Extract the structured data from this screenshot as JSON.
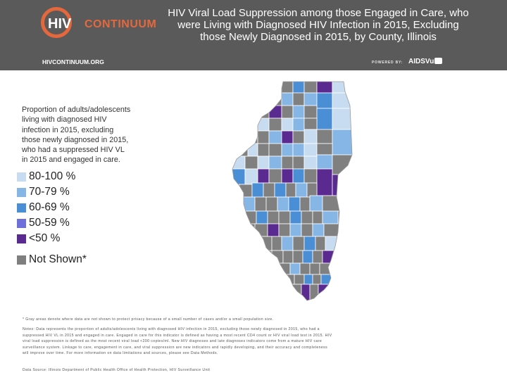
{
  "header": {
    "logo_hiv": "HIV",
    "logo_continuum": "CONTINUUM",
    "url": "HIVCONTINUUM.ORG",
    "powered_by": "POWERED BY:",
    "aidsvu": "AIDSVu",
    "title": "HIV Viral Load Suppression among those Engaged in Care, who were Living with Diagnosed HIV Infection in 2015, Excluding those Newly Diagnosed in 2015, by County, Illinois"
  },
  "legend": {
    "description": "Proportion of adults/adolescents living with diagnosed HIV infection in 2015, excluding those newly diagnosed in 2015, who had a suppressed HIV VL in 2015 and engaged in care.",
    "items": [
      {
        "label": "80-100 %",
        "color": "#c7dcf1"
      },
      {
        "label": "70-79 %",
        "color": "#86b6e6"
      },
      {
        "label": "60-69 %",
        "color": "#4a8fd6"
      },
      {
        "label": "50-59 %",
        "color": "#6f6fdc"
      },
      {
        "label": "<50 %",
        "color": "#5b2a90"
      }
    ],
    "not_shown": {
      "label": "Not Shown*",
      "color": "#7f7f7f"
    }
  },
  "notes": {
    "footnote": "* Gray areas denote where data are not shown to protect privacy because of a small number of cases and/or a small population size.",
    "notes_text": "Notes: Data represents the proportion of adults/adolescents living with diagnosed HIV infection in 2015, excluding those newly diagnosed in 2015, who had a suppressed HIV VL in 2015 and engaged in care. Engaged in care for this indicator is defined as having a most recent CD4 count or HIV viral load test in 2015. HIV viral load suppression is defined as the most recent viral load <200 copies/ml. New HIV diagnoses and late diagnoses indicators come from a mature HIV care surveillance system. Linkage to care, engagement in care, and viral suppression are new indicators and rapidly developing, and their accuracy and completeness will improve over time. For more information on data limitations and sources, please see Data Methods.",
    "source": "Data Source: Illinois Department of Public Health Office of Health Protection, HIV Surveillance Unit"
  }
}
